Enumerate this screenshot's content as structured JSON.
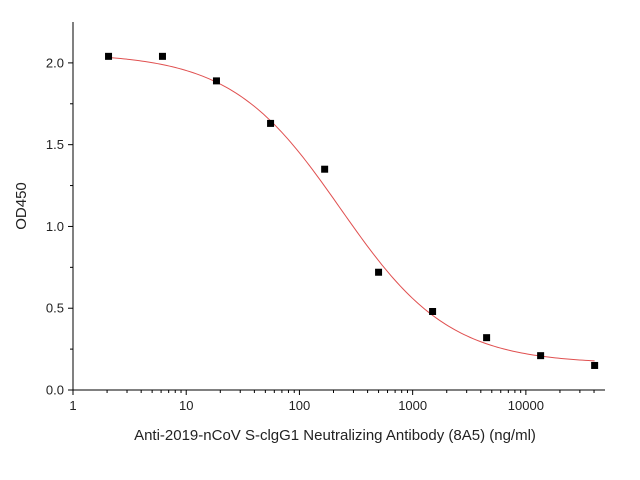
{
  "chart_data": {
    "type": "scatter",
    "xlabel": "Anti-2019-nCoV S-clgG1 Neutralizing Antibody (8A5) (ng/ml)",
    "ylabel": "OD450",
    "x_scale": "log",
    "xlim": [
      1,
      50000
    ],
    "ylim": [
      0,
      2.25
    ],
    "x_ticks": [
      1,
      10,
      100,
      1000,
      10000
    ],
    "x_tick_labels": [
      "1",
      "10",
      "100",
      "1000",
      "10000"
    ],
    "y_ticks": [
      0,
      0.5,
      1.0,
      1.5,
      2.0
    ],
    "y_tick_labels": [
      "0.0",
      "0.5",
      "1.0",
      "1.5",
      "2.0"
    ],
    "grid": false,
    "points": {
      "x": [
        2.06,
        6.17,
        18.5,
        55.6,
        167,
        500,
        1500,
        4500,
        13500,
        40500
      ],
      "y": [
        2.04,
        2.04,
        1.89,
        1.63,
        1.35,
        0.72,
        0.48,
        0.32,
        0.21,
        0.15
      ],
      "color": "#000000",
      "marker": "square"
    },
    "fit_curve": {
      "model": "4PL",
      "top": 2.06,
      "bottom": 0.16,
      "ec50": 230,
      "hill": 0.9,
      "color": "#e05050"
    }
  }
}
